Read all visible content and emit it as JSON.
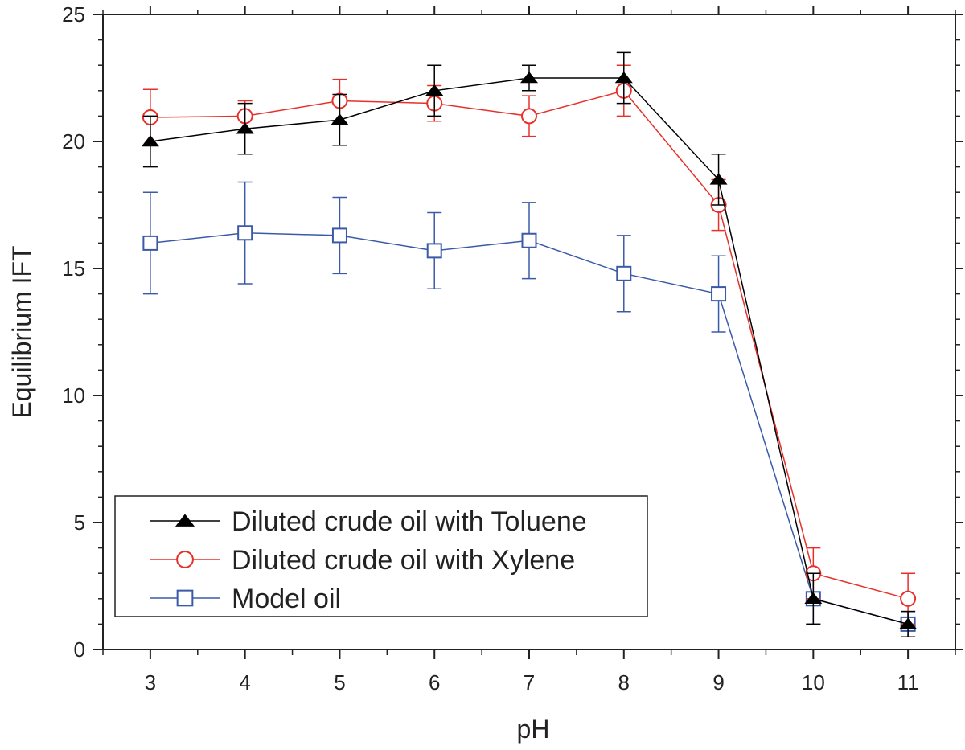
{
  "chart_data": {
    "type": "line",
    "title": "",
    "xlabel": "pH",
    "ylabel": "Equilibrium IFT",
    "xlim": [
      2.5,
      11.5
    ],
    "ylim": [
      0,
      25
    ],
    "x_ticks": [
      3,
      4,
      5,
      6,
      7,
      8,
      9,
      10,
      11
    ],
    "y_ticks": [
      0,
      5,
      10,
      15,
      20,
      25
    ],
    "grid": false,
    "legend_position": "lower-left",
    "x": [
      3,
      4,
      5,
      6,
      7,
      8,
      9,
      10,
      11
    ],
    "series": [
      {
        "name": "Diluted crude oil with Toluene",
        "color": "#000000",
        "marker": "filled-triangle",
        "values": [
          20.0,
          20.5,
          20.85,
          22.0,
          22.5,
          22.5,
          18.5,
          2.0,
          1.0
        ],
        "errors": [
          1.0,
          1.0,
          1.0,
          1.0,
          0.5,
          1.0,
          1.0,
          1.0,
          0.5
        ]
      },
      {
        "name": "Diluted crude oil with Xylene",
        "color": "#e8302a",
        "marker": "open-circle",
        "values": [
          20.95,
          21.0,
          21.6,
          21.5,
          21.0,
          22.0,
          17.5,
          3.0,
          2.0
        ],
        "errors": [
          1.1,
          0.6,
          0.85,
          0.7,
          0.8,
          1.0,
          1.0,
          1.0,
          1.0
        ]
      },
      {
        "name": "Model oil",
        "color": "#3a5aa8",
        "marker": "open-square",
        "values": [
          16.0,
          16.4,
          16.3,
          15.7,
          16.1,
          14.8,
          14.0,
          2.0,
          1.0
        ],
        "errors": [
          2.0,
          2.0,
          1.5,
          1.5,
          1.5,
          1.5,
          1.5,
          1.0,
          0.5
        ]
      }
    ]
  }
}
